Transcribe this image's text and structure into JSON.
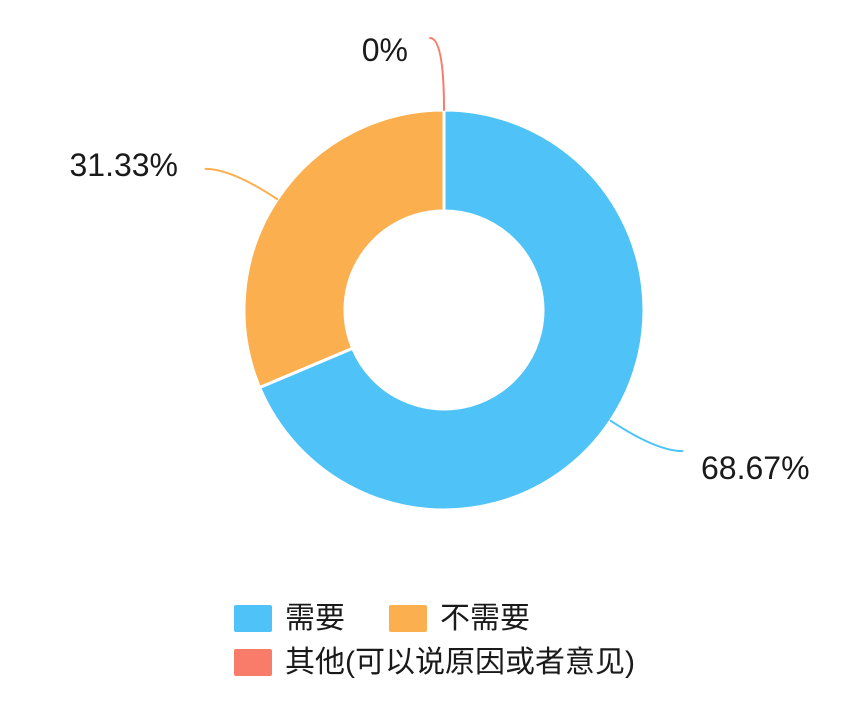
{
  "chart_data": {
    "type": "pie",
    "subtype": "donut",
    "title": "",
    "start_angle": "top",
    "direction": "clockwise",
    "inner_radius_ratio": 0.5,
    "legend_position": "bottom",
    "background_color": "#ffffff",
    "label_color": "#1a1a1a",
    "slice_border_color": "#ffffff",
    "slices": [
      {
        "label": "需要",
        "value": 68.67,
        "percent_label": "68.67%",
        "color": "#4FC3F7"
      },
      {
        "label": "不需要",
        "value": 31.33,
        "percent_label": "31.33%",
        "color": "#FBAF4F"
      },
      {
        "label": "其他(可以说原因或者意见)",
        "value": 0,
        "percent_label": "0%",
        "color": "#F97C6B"
      }
    ]
  }
}
